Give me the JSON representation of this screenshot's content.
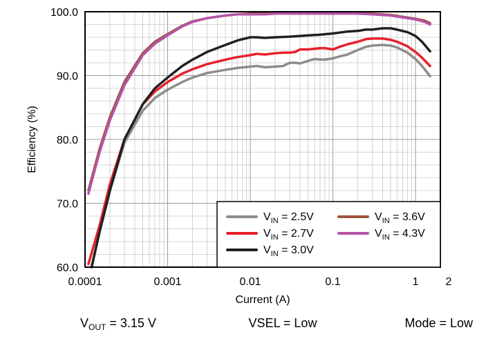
{
  "chart_data": {
    "type": "line",
    "xlabel": "Current (A)",
    "ylabel": "Efficiency (%)",
    "x_scale": "log",
    "xlim": [
      0.0001,
      2
    ],
    "ylim": [
      60,
      100
    ],
    "x_ticks": [
      {
        "value": 0.0001,
        "label": "0.0001"
      },
      {
        "value": 0.001,
        "label": "0.001"
      },
      {
        "value": 0.01,
        "label": "0.01"
      },
      {
        "value": 0.1,
        "label": "0.1"
      },
      {
        "value": 1,
        "label": "1"
      },
      {
        "value": 2,
        "label": "2"
      }
    ],
    "y_ticks": [
      {
        "value": 60,
        "label": "60.0"
      },
      {
        "value": 70,
        "label": "70.0"
      },
      {
        "value": 80,
        "label": "80.0"
      },
      {
        "value": 90,
        "label": "90.0"
      },
      {
        "value": 100,
        "label": "100.0"
      }
    ],
    "grid": true,
    "legend_position": "bottom-right",
    "series": [
      {
        "name": "VIN = 2.5V",
        "sym": "V",
        "sub": "IN",
        "rest": " = 2.5V",
        "color": "#8c8c8c",
        "x": [
          0.00012,
          0.00015,
          0.0002,
          0.0003,
          0.0005,
          0.0007,
          0.001,
          0.0015,
          0.002,
          0.003,
          0.005,
          0.007,
          0.01,
          0.012,
          0.015,
          0.02,
          0.025,
          0.03,
          0.035,
          0.04,
          0.05,
          0.06,
          0.07,
          0.08,
          0.1,
          0.12,
          0.15,
          0.2,
          0.25,
          0.3,
          0.4,
          0.5,
          0.6,
          0.8,
          1.0,
          1.2,
          1.5
        ],
        "y": [
          60.0,
          65.5,
          72.0,
          79.5,
          84.5,
          86.5,
          87.8,
          89.0,
          89.7,
          90.4,
          90.9,
          91.2,
          91.4,
          91.5,
          91.3,
          91.4,
          91.5,
          92.0,
          92.0,
          91.9,
          92.3,
          92.6,
          92.5,
          92.5,
          92.7,
          93.0,
          93.3,
          94.0,
          94.5,
          94.7,
          94.8,
          94.7,
          94.4,
          93.6,
          92.6,
          91.5,
          89.9
        ]
      },
      {
        "name": "VIN = 2.7V",
        "sym": "V",
        "sub": "IN",
        "rest": " = 2.7V",
        "color": "#e8202a",
        "x": [
          0.00011,
          0.00015,
          0.0002,
          0.0003,
          0.0005,
          0.0007,
          0.001,
          0.0015,
          0.002,
          0.003,
          0.005,
          0.007,
          0.01,
          0.012,
          0.015,
          0.02,
          0.025,
          0.03,
          0.035,
          0.04,
          0.05,
          0.06,
          0.07,
          0.08,
          0.1,
          0.12,
          0.15,
          0.2,
          0.25,
          0.3,
          0.4,
          0.5,
          0.6,
          0.8,
          1.0,
          1.2,
          1.5
        ],
        "y": [
          60.5,
          66.5,
          73.0,
          80.0,
          85.5,
          87.5,
          89.0,
          90.3,
          91.0,
          91.8,
          92.5,
          92.9,
          93.2,
          93.4,
          93.3,
          93.5,
          93.6,
          93.6,
          93.7,
          94.1,
          94.1,
          94.2,
          94.3,
          94.3,
          94.1,
          94.5,
          94.9,
          95.3,
          95.7,
          95.8,
          95.8,
          95.6,
          95.3,
          94.6,
          93.7,
          92.8,
          91.5
        ]
      },
      {
        "name": "VIN = 3.0V",
        "sym": "V",
        "sub": "IN",
        "rest": " = 3.0V",
        "color": "#202020",
        "x": [
          0.00012,
          0.00015,
          0.0002,
          0.0003,
          0.0005,
          0.0007,
          0.001,
          0.0015,
          0.002,
          0.003,
          0.005,
          0.007,
          0.01,
          0.012,
          0.015,
          0.02,
          0.03,
          0.04,
          0.05,
          0.07,
          0.1,
          0.15,
          0.2,
          0.25,
          0.3,
          0.4,
          0.5,
          0.6,
          0.8,
          1.0,
          1.2,
          1.5
        ],
        "y": [
          60.0,
          65.5,
          72.0,
          80.0,
          85.5,
          88.0,
          89.7,
          91.5,
          92.5,
          93.7,
          94.8,
          95.5,
          96.0,
          96.0,
          95.9,
          96.0,
          96.1,
          96.2,
          96.3,
          96.4,
          96.6,
          96.9,
          97.0,
          97.2,
          97.2,
          97.4,
          97.4,
          97.2,
          96.8,
          96.2,
          95.3,
          93.8
        ]
      },
      {
        "name": "VIN = 3.6V",
        "sym": "V",
        "sub": "IN",
        "rest": " = 3.6V",
        "color": "#a0523e",
        "x": [
          0.00011,
          0.00015,
          0.0002,
          0.0003,
          0.0005,
          0.0007,
          0.001,
          0.0015,
          0.002,
          0.003,
          0.005,
          0.007,
          0.01,
          0.015,
          0.02,
          0.03,
          0.05,
          0.1,
          0.2,
          0.3,
          0.5,
          0.7,
          1.0,
          1.3,
          1.5
        ],
        "y": [
          72.0,
          78.5,
          83.5,
          89.0,
          93.5,
          95.3,
          96.5,
          97.8,
          98.5,
          99.0,
          99.4,
          99.6,
          99.7,
          99.7,
          99.8,
          99.8,
          99.8,
          99.8,
          99.8,
          99.7,
          99.5,
          99.2,
          98.9,
          98.6,
          98.2
        ]
      },
      {
        "name": "VIN = 4.3V",
        "sym": "V",
        "sub": "IN",
        "rest": " = 4.3V",
        "color": "#b554a8",
        "x": [
          0.00011,
          0.00015,
          0.0002,
          0.0003,
          0.0005,
          0.0007,
          0.001,
          0.0015,
          0.002,
          0.003,
          0.005,
          0.007,
          0.01,
          0.015,
          0.02,
          0.03,
          0.05,
          0.1,
          0.2,
          0.3,
          0.5,
          0.7,
          1.0,
          1.3,
          1.5
        ],
        "y": [
          71.5,
          78.0,
          83.0,
          88.5,
          93.2,
          95.0,
          96.3,
          97.7,
          98.4,
          99.0,
          99.4,
          99.6,
          99.6,
          99.6,
          99.7,
          99.7,
          99.7,
          99.7,
          99.7,
          99.6,
          99.4,
          99.1,
          98.8,
          98.4,
          98.0
        ]
      }
    ]
  },
  "captions": {
    "vout": {
      "sym": "V",
      "sub": "OUT",
      "rest": " = 3.15 V"
    },
    "vsel": "VSEL = Low",
    "mode": "Mode = Low"
  }
}
